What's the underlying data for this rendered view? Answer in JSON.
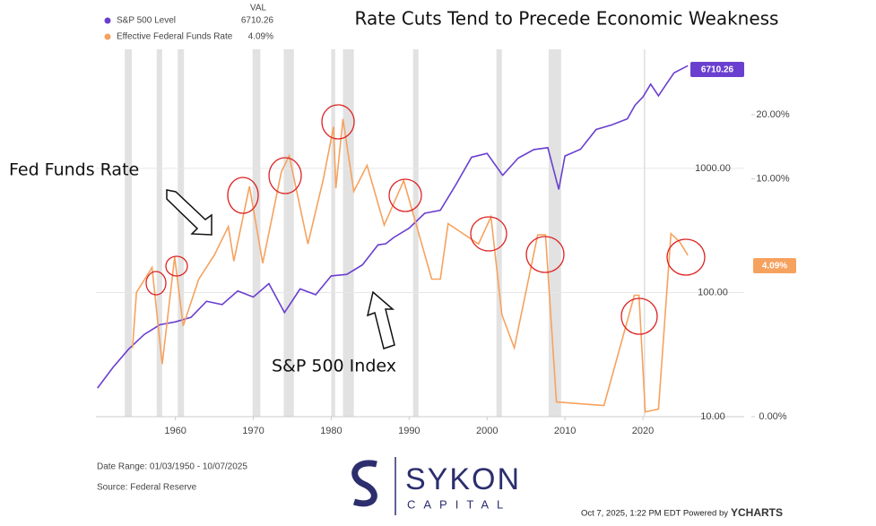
{
  "chart_data": {
    "type": "line",
    "title": "Rate Cuts Tend to Precede Economic Weakness",
    "legend_header": "VAL",
    "annotations": [
      "Fed Funds Rate",
      "S&P 500 Index"
    ],
    "footer": {
      "date_range": "Date Range: 01/03/1950 - 10/07/2025",
      "source": "Source: Federal Reserve",
      "timestamp": "Oct 7, 2025, 1:22 PM EDT Powered by",
      "brand": "YCHARTS",
      "logo": "SYKON",
      "logo_sub": "CAPITAL"
    },
    "xlim": [
      1949.8,
      2033
    ],
    "xticks": [
      1960,
      1970,
      1980,
      1990,
      2000,
      2010,
      2020
    ],
    "ylim": [
      10,
      9100
    ],
    "yticks": [
      {
        "value": 10,
        "label": "10.00"
      },
      {
        "value": 100,
        "label": "100.00"
      },
      {
        "value": 1000,
        "label": "1000.00"
      }
    ],
    "yscale": "log",
    "y2lim": [
      0,
      39.6
    ],
    "y2ticks": [
      {
        "value": 0,
        "label": "0.00%"
      },
      {
        "value": 10,
        "label": "10.00%"
      },
      {
        "value": 20,
        "label": "20.00%"
      }
    ],
    "y2scale": "log1p",
    "grid": true,
    "shaded_ranges": [
      [
        1953.5,
        1954.4
      ],
      [
        1957.6,
        1958.3
      ],
      [
        1960.3,
        1961.1
      ],
      [
        1969.9,
        1970.9
      ],
      [
        1973.9,
        1975.2
      ],
      [
        1980.0,
        1980.5
      ],
      [
        1981.5,
        1982.9
      ],
      [
        1990.5,
        1991.2
      ],
      [
        2001.2,
        2001.9
      ],
      [
        2007.9,
        2009.5
      ],
      [
        2020.1,
        2020.3
      ]
    ],
    "series": [
      {
        "name": "S&P 500 Level",
        "color": "#6a3fcf",
        "x": [
          1950,
          1952,
          1954,
          1956,
          1958,
          1960,
          1962,
          1964,
          1966,
          1968,
          1970,
          1972,
          1974,
          1976,
          1978,
          1980,
          1982,
          1984,
          1986,
          1987,
          1988,
          1990,
          1992,
          1994,
          1996,
          1998,
          2000,
          2002,
          2004,
          2006,
          2007.8,
          2009.2,
          2010,
          2012,
          2014,
          2016,
          2018,
          2019,
          2020,
          2021,
          2022,
          2023,
          2024,
          2025.77
        ],
        "values": [
          17,
          25,
          35,
          46,
          55,
          58,
          63,
          85,
          80,
          103,
          92,
          118,
          69,
          107,
          96,
          136,
          140,
          167,
          242,
          247,
          277,
          330,
          435,
          459,
          740,
          1229,
          1320,
          880,
          1211,
          1418,
          1468,
          676,
          1257,
          1426,
          2058,
          2238,
          2506,
          3230,
          3756,
          4766,
          3839,
          4769,
          5881,
          6710.26
        ]
      },
      {
        "name": "Effective Federal Funds Rate",
        "color": "#f6a25f",
        "axis": "y2",
        "last_label": "4.09%",
        "x": [
          1954.5,
          1955,
          1957,
          1958.3,
          1959.9,
          1961,
          1963,
          1965,
          1966.8,
          1967.5,
          1969.5,
          1971.2,
          1973.6,
          1974.6,
          1977,
          1979,
          1980.3,
          1980.6,
          1981.5,
          1982.9,
          1984.6,
          1986.8,
          1989.3,
          1992.9,
          1994,
          1995,
          1998.9,
          2000.5,
          2001.9,
          2003.5,
          2006.5,
          2007.5,
          2008.9,
          2015,
          2018.9,
          2019.5,
          2020.3,
          2022,
          2023.6,
          2024.7,
          2025.77
        ],
        "values": [
          1.0,
          2.5,
          3.5,
          0.7,
          4.0,
          1.5,
          3.0,
          4.1,
          5.8,
          3.8,
          9.2,
          3.7,
          10.8,
          12.9,
          4.7,
          10,
          17.6,
          9.0,
          19.1,
          8.7,
          11.6,
          5.9,
          9.8,
          3.0,
          3.0,
          6.0,
          4.7,
          6.5,
          1.8,
          1.0,
          5.25,
          5.26,
          0.16,
          0.12,
          2.4,
          2.4,
          0.05,
          0.08,
          5.33,
          4.83,
          4.09
        ]
      }
    ]
  }
}
